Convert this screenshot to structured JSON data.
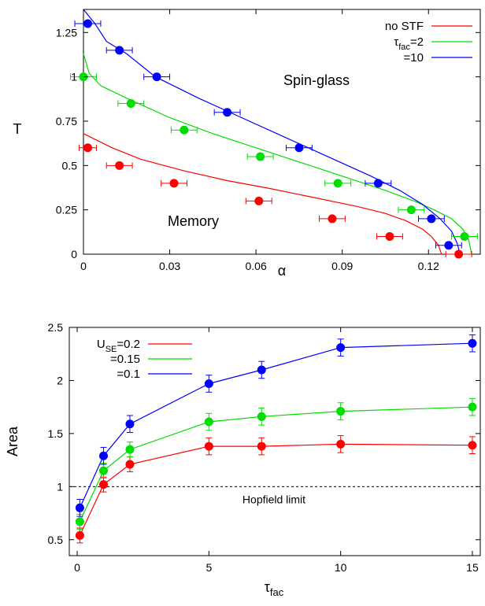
{
  "chart_data": [
    {
      "type": "scatter",
      "xlabel": "α",
      "ylabel": "T",
      "xlim": [
        0,
        0.138
      ],
      "ylim": [
        0,
        1.38
      ],
      "xticks": [
        0,
        0.03,
        0.06,
        0.09,
        0.12
      ],
      "xtick_labels": [
        "0",
        "0.03",
        "0.06",
        "0.09",
        "0.12"
      ],
      "yticks": [
        0,
        0.25,
        0.5,
        0.75,
        1,
        1.25
      ],
      "ytick_labels": [
        "0",
        "0.25",
        "0.5",
        "0.75",
        "1",
        "1.25"
      ],
      "grid": false,
      "legend": "top-right",
      "annotations": [
        "Spin-glass",
        "Memory"
      ],
      "series": [
        {
          "name": "no STF",
          "name_main": "no STF",
          "name_sub": "",
          "name_tail": "",
          "color": "#ff0000",
          "points": [
            [
              0.0015,
              0.6
            ],
            [
              0.0125,
              0.5
            ],
            [
              0.0315,
              0.4
            ],
            [
              0.061,
              0.3
            ],
            [
              0.0865,
              0.2
            ],
            [
              0.1065,
              0.1
            ],
            [
              0.1305,
              0.0
            ]
          ],
          "xerr": [
            0.003,
            0.0045,
            0.0045,
            0.0045,
            0.0045,
            0.0045,
            0.0045
          ],
          "curve": [
            [
              0.0,
              0.68
            ],
            [
              0.01,
              0.6
            ],
            [
              0.02,
              0.535
            ],
            [
              0.035,
              0.47
            ],
            [
              0.05,
              0.415
            ],
            [
              0.065,
              0.37
            ],
            [
              0.08,
              0.32
            ],
            [
              0.095,
              0.27
            ],
            [
              0.105,
              0.23
            ],
            [
              0.112,
              0.19
            ],
            [
              0.118,
              0.14
            ],
            [
              0.121,
              0.1
            ],
            [
              0.1235,
              0.05
            ],
            [
              0.1245,
              0.0
            ]
          ]
        },
        {
          "name": "τfac=2",
          "name_main": "τ",
          "name_sub": "fac",
          "name_tail": "=2",
          "color": "#00dd00",
          "points": [
            [
              0.0,
              1.0
            ],
            [
              0.0165,
              0.85
            ],
            [
              0.035,
              0.7
            ],
            [
              0.0615,
              0.55
            ],
            [
              0.0885,
              0.4
            ],
            [
              0.114,
              0.25
            ],
            [
              0.1325,
              0.1
            ]
          ],
          "xerr": [
            0.0045,
            0.0045,
            0.0045,
            0.0045,
            0.0045,
            0.0045,
            0.0045
          ],
          "curve": [
            [
              0.0,
              1.13
            ],
            [
              0.002,
              1.02
            ],
            [
              0.006,
              0.95
            ],
            [
              0.015,
              0.88
            ],
            [
              0.03,
              0.77
            ],
            [
              0.045,
              0.68
            ],
            [
              0.06,
              0.6
            ],
            [
              0.075,
              0.52
            ],
            [
              0.09,
              0.44
            ],
            [
              0.105,
              0.36
            ],
            [
              0.115,
              0.3
            ],
            [
              0.122,
              0.25
            ],
            [
              0.128,
              0.2
            ],
            [
              0.132,
              0.14
            ],
            [
              0.134,
              0.08
            ],
            [
              0.135,
              0.0
            ]
          ]
        },
        {
          "name": "=10",
          "name_main": "=10",
          "name_sub": "",
          "name_tail": "",
          "color": "#0000ff",
          "points": [
            [
              0.0015,
              1.3
            ],
            [
              0.0125,
              1.15
            ],
            [
              0.0255,
              1.0
            ],
            [
              0.05,
              0.8
            ],
            [
              0.075,
              0.6
            ],
            [
              0.1025,
              0.4
            ],
            [
              0.121,
              0.2
            ],
            [
              0.127,
              0.05
            ]
          ],
          "xerr": [
            0.0045,
            0.0045,
            0.0045,
            0.0045,
            0.0045,
            0.0045,
            0.0045,
            0.0045
          ],
          "curve": [
            [
              0.0,
              1.38
            ],
            [
              0.004,
              1.3
            ],
            [
              0.008,
              1.2
            ],
            [
              0.015,
              1.13
            ],
            [
              0.025,
              1.0
            ],
            [
              0.04,
              0.88
            ],
            [
              0.055,
              0.77
            ],
            [
              0.07,
              0.66
            ],
            [
              0.085,
              0.55
            ],
            [
              0.1,
              0.44
            ],
            [
              0.11,
              0.36
            ],
            [
              0.118,
              0.28
            ],
            [
              0.124,
              0.2
            ],
            [
              0.128,
              0.13
            ],
            [
              0.13,
              0.06
            ],
            [
              0.131,
              0.0
            ]
          ]
        }
      ]
    },
    {
      "type": "line",
      "xlabel": "τfac",
      "xlabel_main": "τ",
      "xlabel_sub": "fac",
      "ylabel": "Area",
      "xlim": [
        -0.3,
        15.3
      ],
      "ylim": [
        0.35,
        2.5
      ],
      "xticks": [
        0,
        5,
        10,
        15
      ],
      "xtick_labels": [
        "0",
        "5",
        "10",
        "15"
      ],
      "yticks": [
        0.5,
        1,
        1.5,
        2,
        2.5
      ],
      "ytick_labels": [
        "0.5",
        "1",
        "1.5",
        "2",
        "2.5"
      ],
      "grid": false,
      "legend": "top-left",
      "reference_line": {
        "y": 1,
        "label": "Hopfield limit"
      },
      "x": [
        0.1,
        1,
        2,
        5,
        7,
        10,
        15
      ],
      "series": [
        {
          "name": "USE=0.2",
          "name_main": "U",
          "name_sub": "SE",
          "name_tail": "=0.2",
          "color": "#ff0000",
          "values": [
            0.54,
            1.02,
            1.21,
            1.38,
            1.38,
            1.4,
            1.39
          ],
          "yerr": [
            0.07,
            0.07,
            0.07,
            0.08,
            0.08,
            0.08,
            0.08
          ]
        },
        {
          "name": "=0.15",
          "name_main": "=0.15",
          "name_sub": "",
          "name_tail": "",
          "color": "#00dd00",
          "values": [
            0.67,
            1.15,
            1.35,
            1.61,
            1.66,
            1.71,
            1.75
          ],
          "yerr": [
            0.07,
            0.07,
            0.07,
            0.08,
            0.08,
            0.08,
            0.08
          ]
        },
        {
          "name": "=0.1",
          "name_main": "=0.1",
          "name_sub": "",
          "name_tail": "",
          "color": "#0000ff",
          "values": [
            0.8,
            1.29,
            1.59,
            1.97,
            2.1,
            2.31,
            2.35
          ],
          "yerr": [
            0.08,
            0.08,
            0.08,
            0.08,
            0.08,
            0.08,
            0.08
          ]
        }
      ]
    }
  ]
}
